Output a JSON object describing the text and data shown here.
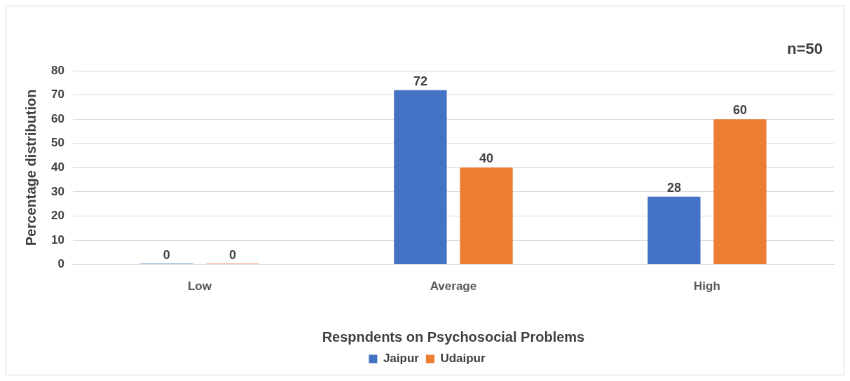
{
  "chart_data": {
    "type": "bar",
    "xlabel": "Respndents on Psychosocial Problems",
    "ylabel": "Percentage distribution",
    "annotations": [
      "n=50"
    ],
    "categories": [
      "Low",
      "Average",
      "High"
    ],
    "series": [
      {
        "name": "Jaipur",
        "color": "#4472c4",
        "values": [
          0,
          72,
          28
        ]
      },
      {
        "name": "Udaipur",
        "color": "#ed7d31",
        "values": [
          0,
          40,
          60
        ]
      }
    ],
    "ylim": [
      0,
      80
    ],
    "yticks": [
      0,
      10,
      20,
      30,
      40,
      50,
      60,
      70,
      80
    ],
    "grid": "y",
    "legend": "bottom",
    "data_labels": true
  }
}
